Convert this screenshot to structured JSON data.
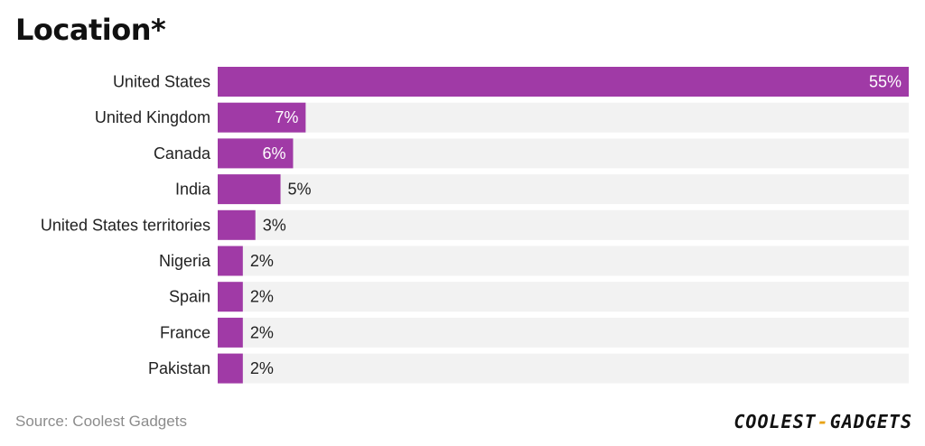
{
  "chart_data": {
    "type": "bar",
    "orientation": "horizontal",
    "title": "Location*",
    "categories": [
      "United States",
      "United Kingdom",
      "Canada",
      "India",
      "United States territories",
      "Nigeria",
      "Spain",
      "France",
      "Pakistan"
    ],
    "values": [
      55,
      7,
      6,
      5,
      3,
      2,
      2,
      2,
      2
    ],
    "value_labels": [
      "55%",
      "7%",
      "6%",
      "5%",
      "3%",
      "2%",
      "2%",
      "2%",
      "2%"
    ],
    "unit": "%",
    "xlim": [
      0,
      55
    ],
    "xlabel": "",
    "ylabel": "",
    "grid": false,
    "bar_color": "#a03aa6",
    "track_color": "#f2f2f2"
  },
  "footer": {
    "source": "Source: Coolest Gadgets",
    "brand_left": "COOLEST",
    "brand_dash": "-",
    "brand_right": "GADGETS"
  }
}
